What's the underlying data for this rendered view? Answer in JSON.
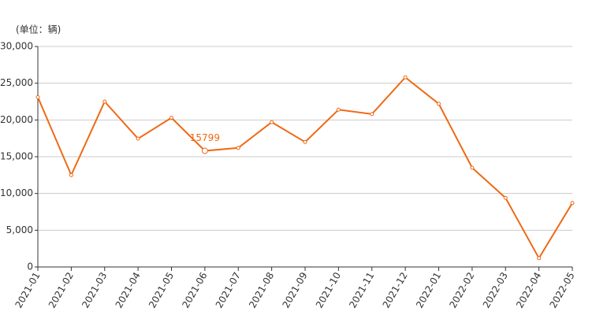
{
  "chart_data": {
    "type": "line",
    "unit_label": "(单位：辆)",
    "categories": [
      "2021-01",
      "2021-02",
      "2021-03",
      "2021-04",
      "2021-05",
      "2021-06",
      "2021-07",
      "2021-08",
      "2021-09",
      "2021-10",
      "2021-11",
      "2021-12",
      "2022-01",
      "2022-02",
      "2022-03",
      "2022-04",
      "2022-05"
    ],
    "series": [
      {
        "color": "#ee6a14",
        "values": [
          23100,
          12500,
          22500,
          17460,
          20300,
          15799,
          16200,
          19700,
          17000,
          21400,
          20800,
          25800,
          22200,
          13500,
          9400,
          1200,
          8700
        ]
      }
    ],
    "highlight_index": 5,
    "ylim": [
      0,
      30000
    ],
    "yticks": [
      0,
      {
        "value": 5000,
        "label": "5,000"
      },
      {
        "value": 10000,
        "label": "10,000"
      },
      {
        "value": 15000,
        "label": "15,000"
      },
      {
        "value": 20000,
        "label": "20,000"
      },
      {
        "value": 25000,
        "label": "25,000"
      },
      {
        "value": 30000,
        "label": "30,000"
      }
    ],
    "grid": true
  }
}
